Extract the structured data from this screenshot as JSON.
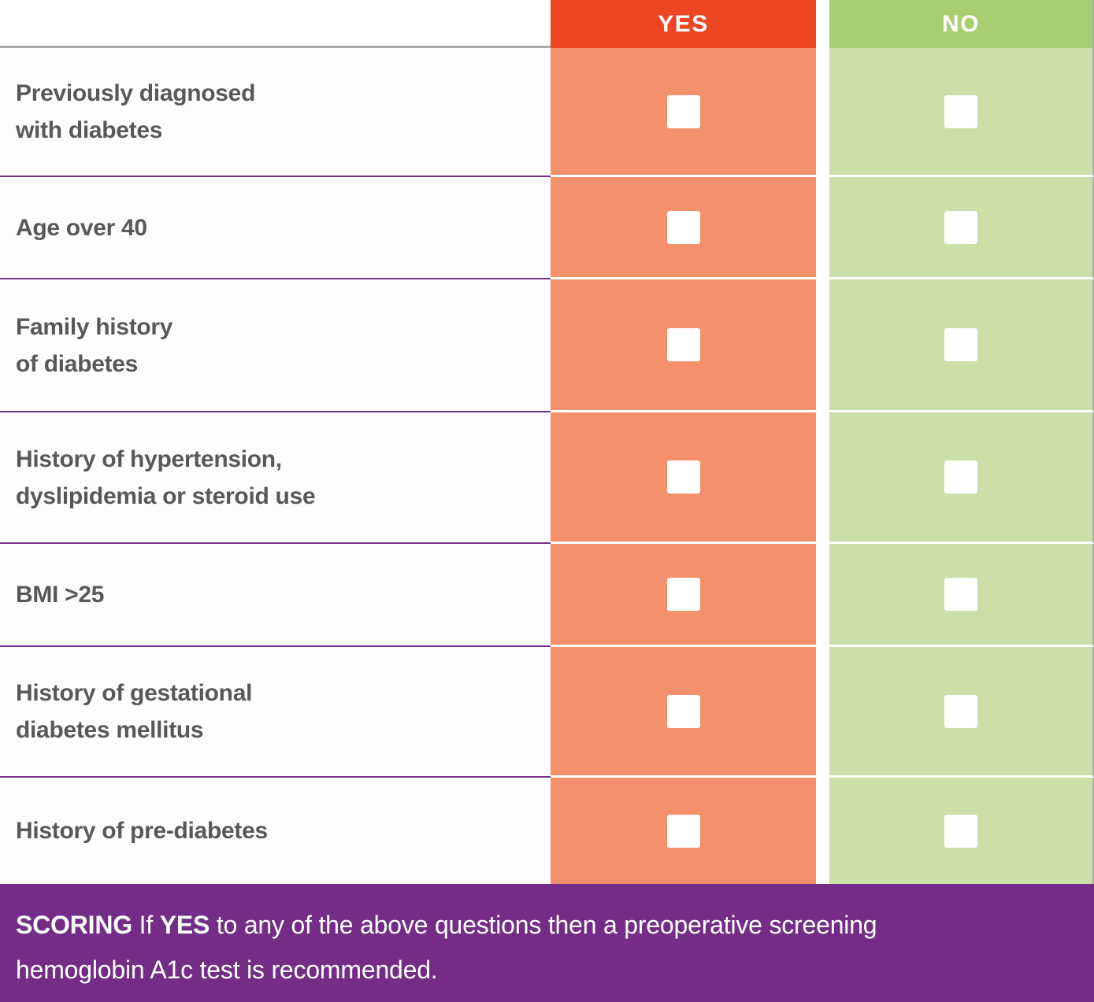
{
  "header": {
    "yes_label": "YES",
    "no_label": "NO"
  },
  "questions": [
    {
      "label": "Previously diagnosed\nwith diabetes"
    },
    {
      "label": "Age over 40"
    },
    {
      "label": "Family history\nof diabetes"
    },
    {
      "label": "History of hypertension,\ndyslipidemia or steroid use"
    },
    {
      "label": "BMI >25"
    },
    {
      "label": "History of gestational\ndiabetes mellitus"
    },
    {
      "label": "History of pre-diabetes"
    }
  ],
  "footer": {
    "scoring_label": "SCORING",
    "segment_1": " If ",
    "yes_emphasis": "YES",
    "segment_2": " to any of the above questions then a preoperative screening hemoglobin A1c test is recommended."
  },
  "colors": {
    "yes_header": "#EE4522",
    "yes_cell": "#F5906C",
    "no_header": "#A8CF70",
    "no_cell": "#CAE0A8",
    "footer_purple": "#732D87",
    "divider_purple": "#7B2E8B",
    "header_divider_gray": "#ABABAB",
    "question_text_gray": "#58585A"
  }
}
